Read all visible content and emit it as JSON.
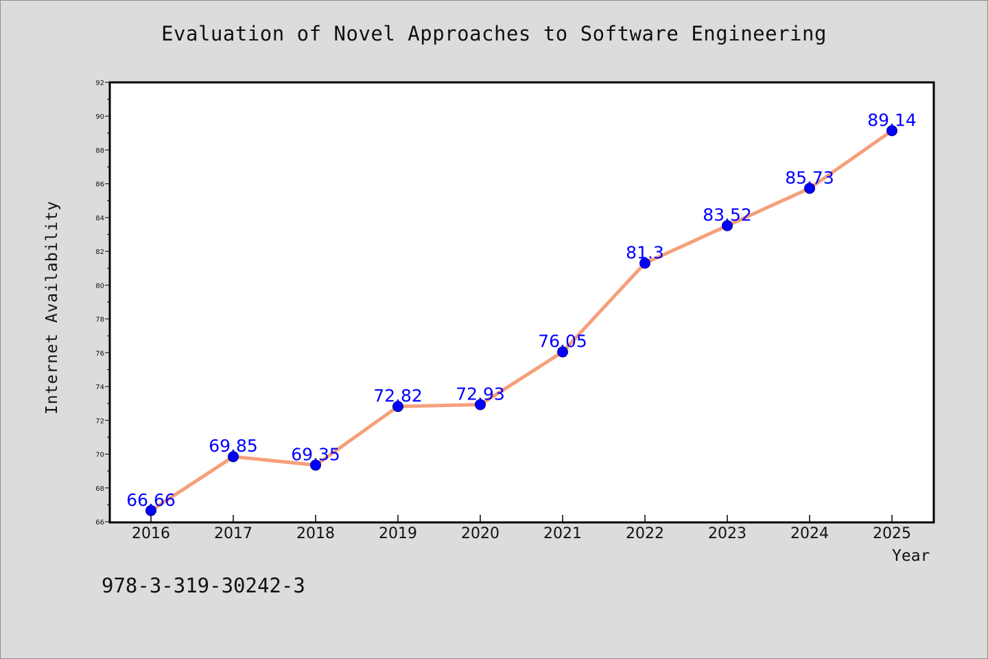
{
  "chart_data": {
    "type": "line",
    "title": "Evaluation of Novel Approaches to Software Engineering",
    "xlabel": "Year",
    "ylabel": "Internet Availability",
    "categories": [
      "2016",
      "2017",
      "2018",
      "2019",
      "2020",
      "2021",
      "2022",
      "2023",
      "2024",
      "2025"
    ],
    "values": [
      66.66,
      69.85,
      69.35,
      72.82,
      72.93,
      76.05,
      81.3,
      83.52,
      85.73,
      89.14
    ],
    "data_labels": [
      "66.66",
      "69.85",
      "69.35",
      "72.82",
      "72.93",
      "76.05",
      "81.3",
      "83.52",
      "85.73",
      "89.14"
    ],
    "ylim": [
      66,
      92
    ],
    "yticks": [
      66,
      68,
      70,
      72,
      74,
      76,
      78,
      80,
      82,
      84,
      86,
      88,
      90,
      92
    ],
    "grid": false,
    "legend": "none",
    "colors": {
      "line": "#f5a07a",
      "marker": "#0000ff",
      "marker_edge": "#000080",
      "data_label": "#0000ff",
      "background": "#dcdcdc",
      "plot_background": "#ffffff"
    }
  },
  "footer": {
    "isbn": "978-3-319-30242-3"
  }
}
